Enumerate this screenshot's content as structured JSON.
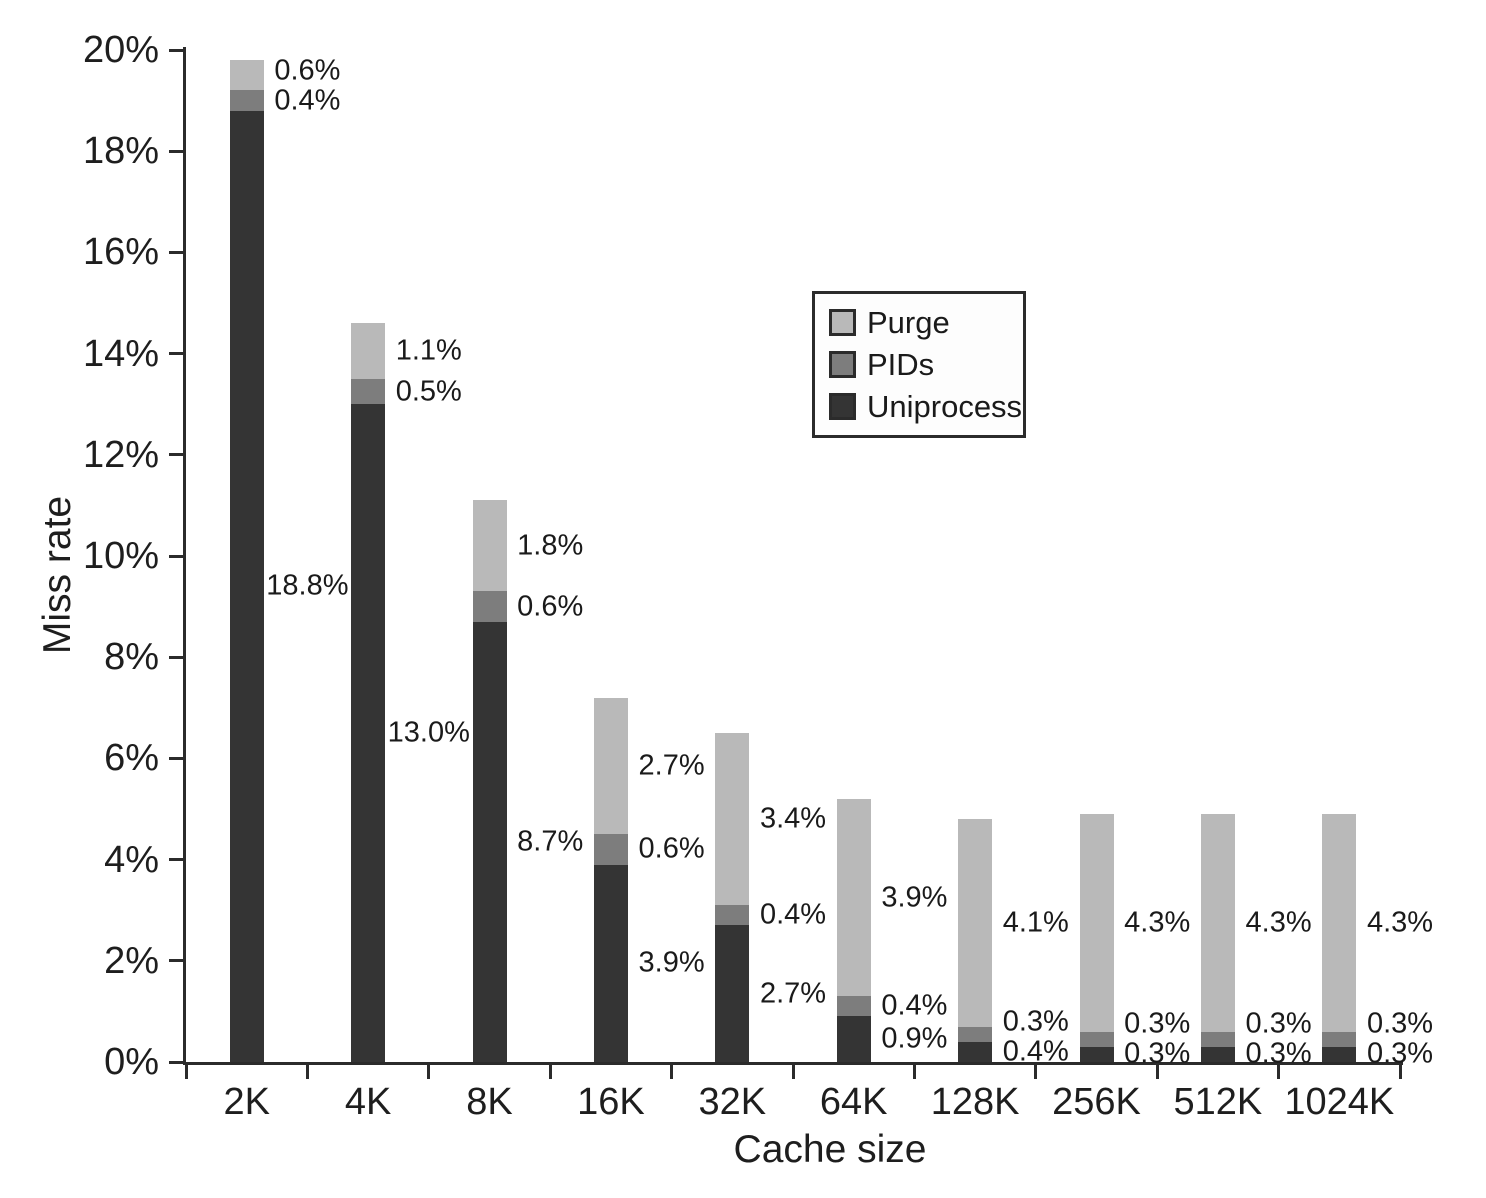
{
  "chart_data": {
    "type": "bar",
    "stacked": true,
    "title": "",
    "xlabel": "Cache size",
    "ylabel": "Miss rate",
    "ylim": [
      0,
      20
    ],
    "ytick_step": 2,
    "ytick_labels": [
      "0%",
      "2%",
      "4%",
      "6%",
      "8%",
      "10%",
      "12%",
      "14%",
      "16%",
      "18%",
      "20%"
    ],
    "grid": false,
    "legend_position": "upper-middle",
    "legend_order": [
      "Purge",
      "PIDs",
      "Uniprocess"
    ],
    "categories": [
      "2K",
      "4K",
      "8K",
      "16K",
      "32K",
      "64K",
      "128K",
      "256K",
      "512K",
      "1024K"
    ],
    "series": [
      {
        "name": "Uniprocess",
        "color": "#343434",
        "values": [
          18.8,
          13.0,
          8.7,
          3.9,
          2.7,
          0.9,
          0.4,
          0.3,
          0.3,
          0.3
        ],
        "labels": [
          "18.8%",
          "13.0%",
          "8.7%",
          "3.9%",
          "2.7%",
          "0.9%",
          "0.4%",
          "0.3%",
          "0.3%",
          "0.3%"
        ]
      },
      {
        "name": "PIDs",
        "color": "#7d7d7d",
        "values": [
          0.4,
          0.5,
          0.6,
          0.6,
          0.4,
          0.4,
          0.3,
          0.3,
          0.3,
          0.3
        ],
        "labels": [
          "0.4%",
          "0.5%",
          "0.6%",
          "0.6%",
          "0.4%",
          "0.4%",
          "0.3%",
          "0.3%",
          "0.3%",
          "0.3%"
        ]
      },
      {
        "name": "Purge",
        "color": "#b9b9b9",
        "values": [
          0.6,
          1.1,
          1.8,
          2.7,
          3.4,
          3.9,
          4.1,
          4.3,
          4.3,
          4.3
        ],
        "labels": [
          "0.6%",
          "1.1%",
          "1.8%",
          "2.7%",
          "3.4%",
          "3.9%",
          "4.1%",
          "4.3%",
          "4.3%",
          "4.3%"
        ]
      }
    ]
  }
}
